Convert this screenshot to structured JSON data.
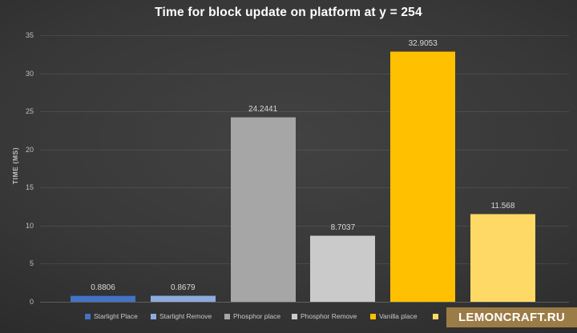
{
  "chart_data": {
    "type": "bar",
    "title": "Time for block update on platform at y = 254",
    "xlabel": "",
    "ylabel": "TIME (MS)",
    "categories": [
      "Starlight Place",
      "Starlight Remove",
      "Phosphor place",
      "Phosphor Remove",
      "Vanilla place",
      ""
    ],
    "values": [
      0.8806,
      0.8679,
      24.2441,
      8.7037,
      32.9053,
      11.568
    ],
    "data_labels": [
      "0.8806",
      "0.8679",
      "24.2441",
      "8.7037",
      "32.9053",
      "11.568"
    ],
    "bar_colors": [
      "#4472C4",
      "#8FAADC",
      "#A6A6A6",
      "#CBCACA",
      "#FFC000",
      "#FFD966"
    ],
    "ylim": [
      0,
      35
    ],
    "yticks": [
      0,
      5,
      10,
      15,
      20,
      25,
      30,
      35
    ],
    "grid": true,
    "legend_position": "bottom",
    "legend": [
      {
        "label": "Starlight Place",
        "color": "#4472C4"
      },
      {
        "label": "Starlight Remove",
        "color": "#8FAADC"
      },
      {
        "label": "Phosphor place",
        "color": "#A6A6A6"
      },
      {
        "label": "Phosphor Remove",
        "color": "#CBCACA"
      },
      {
        "label": "Vanilla place",
        "color": "#FFC000"
      },
      {
        "label": "",
        "color": "#FFD966"
      }
    ]
  },
  "colors": {
    "background_center": "#424242",
    "background_edge": "#1d1d1d",
    "gridline": "rgba(255,255,255,0.09)",
    "axis_text": "#bfbfbf",
    "data_label_text": "#d9d9d9",
    "title_text": "#ffffff",
    "watermark_bg": "#9C7C46",
    "watermark_text": "#FFFFFF"
  },
  "watermark": {
    "text": "LEMONCRAFT.RU"
  }
}
